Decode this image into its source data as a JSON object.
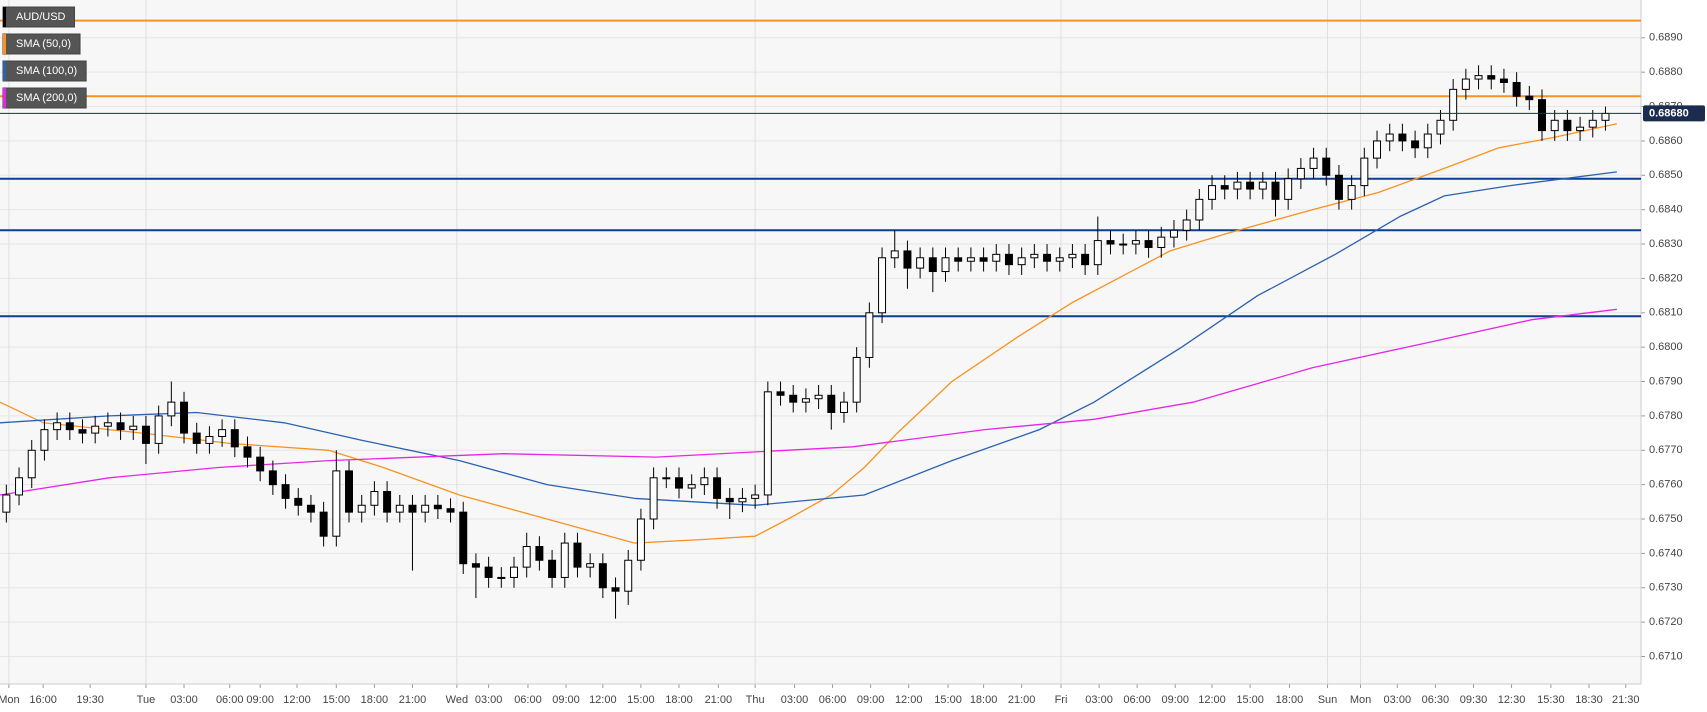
{
  "chart_data": {
    "type": "candlestick",
    "xlim": [
      0,
      129.3
    ],
    "ylim": [
      0.6702,
      0.6901
    ],
    "yticks": [
      {
        "value": 0.671,
        "label": "0.6710"
      },
      {
        "value": 0.672,
        "label": "0.6720"
      },
      {
        "value": 0.673,
        "label": "0.6730"
      },
      {
        "value": 0.674,
        "label": "0.6740"
      },
      {
        "value": 0.675,
        "label": "0.6750"
      },
      {
        "value": 0.676,
        "label": "0.6760"
      },
      {
        "value": 0.677,
        "label": "0.6770"
      },
      {
        "value": 0.678,
        "label": "0.6780"
      },
      {
        "value": 0.679,
        "label": "0.6790"
      },
      {
        "value": 0.68,
        "label": "0.6800"
      },
      {
        "value": 0.681,
        "label": "0.6810"
      },
      {
        "value": 0.682,
        "label": "0.6820"
      },
      {
        "value": 0.683,
        "label": "0.6830"
      },
      {
        "value": 0.684,
        "label": "0.6840"
      },
      {
        "value": 0.685,
        "label": "0.6850"
      },
      {
        "value": 0.686,
        "label": "0.6860"
      },
      {
        "value": 0.687,
        "label": "0.6870"
      },
      {
        "value": 0.688,
        "label": "0.6880"
      },
      {
        "value": 0.689,
        "label": "0.6890"
      }
    ],
    "xticks": [
      {
        "value": 0.7,
        "label": "Mon"
      },
      {
        "value": 3.4,
        "label": "16:00"
      },
      {
        "value": 7.1,
        "label": "19:30"
      },
      {
        "value": 11.5,
        "label": "Tue"
      },
      {
        "value": 14.5,
        "label": "03:00"
      },
      {
        "value": 18.1,
        "label": "06:00"
      },
      {
        "value": 20.5,
        "label": "09:00"
      },
      {
        "value": 23.4,
        "label": "12:00"
      },
      {
        "value": 26.5,
        "label": "15:00"
      },
      {
        "value": 29.5,
        "label": "18:00"
      },
      {
        "value": 32.5,
        "label": "21:00"
      },
      {
        "value": 36,
        "label": "Wed"
      },
      {
        "value": 38.5,
        "label": "03:00"
      },
      {
        "value": 41.6,
        "label": "06:00"
      },
      {
        "value": 44.6,
        "label": "09:00"
      },
      {
        "value": 47.5,
        "label": "12:00"
      },
      {
        "value": 50.5,
        "label": "15:00"
      },
      {
        "value": 53.5,
        "label": "18:00"
      },
      {
        "value": 56.6,
        "label": "21:00"
      },
      {
        "value": 59.5,
        "label": "Thu"
      },
      {
        "value": 62.6,
        "label": "03:00"
      },
      {
        "value": 65.6,
        "label": "06:00"
      },
      {
        "value": 68.6,
        "label": "09:00"
      },
      {
        "value": 71.6,
        "label": "12:00"
      },
      {
        "value": 74.7,
        "label": "15:00"
      },
      {
        "value": 77.5,
        "label": "18:00"
      },
      {
        "value": 80.5,
        "label": "21:00"
      },
      {
        "value": 83.6,
        "label": "Fri"
      },
      {
        "value": 86.6,
        "label": "03:00"
      },
      {
        "value": 89.6,
        "label": "06:00"
      },
      {
        "value": 92.6,
        "label": "09:00"
      },
      {
        "value": 95.5,
        "label": "12:00"
      },
      {
        "value": 98.5,
        "label": "15:00"
      },
      {
        "value": 101.6,
        "label": "18:00"
      },
      {
        "value": 104.6,
        "label": "Sun"
      },
      {
        "value": 107.2,
        "label": "Mon"
      },
      {
        "value": 110.1,
        "label": "03:00"
      },
      {
        "value": 113.1,
        "label": "06:30"
      },
      {
        "value": 116.1,
        "label": "09:30"
      },
      {
        "value": 119.1,
        "label": "12:30"
      },
      {
        "value": 122.2,
        "label": "15:30"
      },
      {
        "value": 125.2,
        "label": "18:30"
      },
      {
        "value": 128.1,
        "label": "21:30"
      }
    ],
    "grid": true,
    "levels": [
      {
        "value": 0.6895,
        "color": "#f7931e"
      },
      {
        "value": 0.6873,
        "color": "#f7931e"
      },
      {
        "value": 0.6849,
        "color": "#0d3f8f"
      },
      {
        "value": 0.6834,
        "color": "#0d3f8f"
      },
      {
        "value": 0.6809,
        "color": "#0d3f8f"
      }
    ],
    "last_price": {
      "value": 0.6868,
      "label": "0.68680"
    },
    "series": [
      {
        "name": "AUD/USD",
        "color": "#000000",
        "open": [
          0.6752,
          0.6757,
          0.6762,
          0.677,
          0.6776,
          0.6778,
          0.6776,
          0.6775,
          0.6777,
          0.6778,
          0.6776,
          0.6777,
          0.6772,
          0.678,
          0.6784,
          0.6775,
          0.6772,
          0.6774,
          0.6776,
          0.6771,
          0.6768,
          0.6764,
          0.676,
          0.6756,
          0.6754,
          0.6752,
          0.6745,
          0.6764,
          0.6752,
          0.6754,
          0.6758,
          0.6752,
          0.6754,
          0.6752,
          0.6754,
          0.6753,
          0.6752,
          0.6737,
          0.6736,
          0.6733,
          0.6733,
          0.6736,
          0.6742,
          0.6738,
          0.6733,
          0.6743,
          0.6736,
          0.6737,
          0.673,
          0.6729,
          0.6738,
          0.675,
          0.6762,
          0.6762,
          0.6759,
          0.676,
          0.6762,
          0.6756,
          0.6755,
          0.6756,
          0.6757,
          0.6787,
          0.6786,
          0.6784,
          0.6785,
          0.6786,
          0.6781,
          0.6784,
          0.6797,
          0.681,
          0.6826,
          0.6828,
          0.6823,
          0.6826,
          0.6822,
          0.6826,
          0.6825,
          0.6826,
          0.6825,
          0.6827,
          0.6824,
          0.6826,
          0.6827,
          0.6825,
          0.6826,
          0.6827,
          0.6824,
          0.6831,
          0.683,
          0.683,
          0.6831,
          0.6829,
          0.6832,
          0.6834,
          0.6837,
          0.6843,
          0.6847,
          0.6846,
          0.6848,
          0.6846,
          0.6848,
          0.6843,
          0.6849,
          0.6852,
          0.6855,
          0.685,
          0.6843,
          0.6847,
          0.6855,
          0.686,
          0.6862,
          0.686,
          0.6858,
          0.6862,
          0.6866,
          0.6875,
          0.6878,
          0.6879,
          0.6878,
          0.6877,
          0.6873,
          0.6872,
          0.6863,
          0.6866,
          0.6863,
          0.6864,
          0.6866
        ],
        "high": [
          0.676,
          0.6765,
          0.6773,
          0.6779,
          0.6781,
          0.6781,
          0.6779,
          0.678,
          0.6781,
          0.6781,
          0.678,
          0.678,
          0.6783,
          0.679,
          0.6787,
          0.6778,
          0.6777,
          0.6779,
          0.6779,
          0.6774,
          0.6771,
          0.6767,
          0.6763,
          0.6759,
          0.6757,
          0.6755,
          0.677,
          0.6767,
          0.6757,
          0.6761,
          0.6761,
          0.6757,
          0.6757,
          0.6757,
          0.6757,
          0.6756,
          0.6755,
          0.674,
          0.6739,
          0.6736,
          0.6739,
          0.6746,
          0.6745,
          0.6741,
          0.6746,
          0.6746,
          0.674,
          0.674,
          0.6733,
          0.6741,
          0.6753,
          0.6765,
          0.6765,
          0.6765,
          0.6763,
          0.6765,
          0.6765,
          0.6759,
          0.6759,
          0.676,
          0.679,
          0.679,
          0.6789,
          0.6788,
          0.6789,
          0.6789,
          0.6787,
          0.68,
          0.6813,
          0.6829,
          0.6834,
          0.6831,
          0.6829,
          0.6829,
          0.6829,
          0.6829,
          0.6829,
          0.6829,
          0.683,
          0.683,
          0.6829,
          0.683,
          0.683,
          0.6829,
          0.683,
          0.683,
          0.6838,
          0.6834,
          0.6833,
          0.6834,
          0.6834,
          0.6835,
          0.6837,
          0.684,
          0.6846,
          0.685,
          0.685,
          0.6851,
          0.6851,
          0.6851,
          0.6851,
          0.6852,
          0.6855,
          0.6858,
          0.6858,
          0.6853,
          0.685,
          0.6858,
          0.6863,
          0.6865,
          0.6865,
          0.6863,
          0.6865,
          0.6869,
          0.6878,
          0.6881,
          0.6882,
          0.6882,
          0.6881,
          0.688,
          0.6876,
          0.6875,
          0.6869,
          0.6869,
          0.6867,
          0.6869,
          0.687
        ],
        "low": [
          0.6749,
          0.6754,
          0.6759,
          0.6767,
          0.6773,
          0.6773,
          0.6772,
          0.6772,
          0.6774,
          0.6773,
          0.6773,
          0.6766,
          0.6769,
          0.6777,
          0.6772,
          0.6769,
          0.6769,
          0.6771,
          0.6768,
          0.6765,
          0.6761,
          0.6757,
          0.6753,
          0.6751,
          0.6749,
          0.6742,
          0.6742,
          0.6749,
          0.6749,
          0.6751,
          0.6749,
          0.6749,
          0.6735,
          0.6749,
          0.675,
          0.6749,
          0.6734,
          0.6727,
          0.673,
          0.673,
          0.673,
          0.6733,
          0.6735,
          0.673,
          0.673,
          0.6733,
          0.6733,
          0.6727,
          0.6721,
          0.6725,
          0.6735,
          0.6747,
          0.6759,
          0.6756,
          0.6756,
          0.6757,
          0.6753,
          0.675,
          0.6752,
          0.6753,
          0.6754,
          0.6783,
          0.6781,
          0.6781,
          0.6782,
          0.6776,
          0.6778,
          0.6781,
          0.6794,
          0.6807,
          0.6823,
          0.6817,
          0.682,
          0.6816,
          0.6819,
          0.6822,
          0.6822,
          0.6822,
          0.6822,
          0.6821,
          0.6821,
          0.6823,
          0.6822,
          0.6822,
          0.6823,
          0.6821,
          0.6821,
          0.6827,
          0.6827,
          0.6827,
          0.6826,
          0.6826,
          0.6829,
          0.6831,
          0.6834,
          0.684,
          0.6843,
          0.6843,
          0.6843,
          0.6843,
          0.6838,
          0.684,
          0.6846,
          0.6849,
          0.6847,
          0.684,
          0.684,
          0.6844,
          0.6852,
          0.6857,
          0.6857,
          0.6855,
          0.6855,
          0.6859,
          0.6863,
          0.6872,
          0.6875,
          0.6875,
          0.6874,
          0.687,
          0.6869,
          0.686,
          0.686,
          0.686,
          0.686,
          0.6861,
          0.6863
        ],
        "close": [
          0.6757,
          0.6762,
          0.677,
          0.6776,
          0.6778,
          0.6776,
          0.6775,
          0.6777,
          0.6778,
          0.6776,
          0.6777,
          0.6772,
          0.678,
          0.6784,
          0.6775,
          0.6772,
          0.6774,
          0.6776,
          0.6771,
          0.6768,
          0.6764,
          0.676,
          0.6756,
          0.6754,
          0.6752,
          0.6745,
          0.6764,
          0.6752,
          0.6754,
          0.6758,
          0.6752,
          0.6754,
          0.6752,
          0.6754,
          0.6753,
          0.6752,
          0.6737,
          0.6736,
          0.6733,
          0.6733,
          0.6736,
          0.6742,
          0.6738,
          0.6733,
          0.6743,
          0.6736,
          0.6737,
          0.673,
          0.6729,
          0.6738,
          0.675,
          0.6762,
          0.6762,
          0.6759,
          0.676,
          0.6762,
          0.6756,
          0.6755,
          0.6756,
          0.6757,
          0.6787,
          0.6786,
          0.6784,
          0.6785,
          0.6786,
          0.6781,
          0.6784,
          0.6797,
          0.681,
          0.6826,
          0.6828,
          0.6823,
          0.6826,
          0.6822,
          0.6826,
          0.6825,
          0.6826,
          0.6825,
          0.6827,
          0.6824,
          0.6826,
          0.6827,
          0.6825,
          0.6826,
          0.6827,
          0.6824,
          0.6831,
          0.683,
          0.683,
          0.6831,
          0.6829,
          0.6832,
          0.6834,
          0.6837,
          0.6843,
          0.6847,
          0.6846,
          0.6848,
          0.6846,
          0.6848,
          0.6843,
          0.6849,
          0.6852,
          0.6855,
          0.685,
          0.6843,
          0.6847,
          0.6855,
          0.686,
          0.6862,
          0.686,
          0.6858,
          0.6862,
          0.6866,
          0.6875,
          0.6878,
          0.6879,
          0.6878,
          0.6877,
          0.6873,
          0.6872,
          0.6863,
          0.6866,
          0.6863,
          0.6864,
          0.6866,
          0.6868
        ]
      },
      {
        "name": "SMA (50,0)",
        "color": "#f7931e",
        "x": [
          0,
          3.4,
          11.2,
          18.1,
          25.9,
          30.2,
          36.2,
          43.1,
          50,
          55.2,
          59.5,
          62.1,
          65.5,
          68.1,
          70.7,
          75,
          80.2,
          84.5,
          92.2,
          96.6,
          103.4,
          108.6,
          113.8,
          118.1,
          122.4,
          127.4
        ],
        "values": [
          0.6784,
          0.6778,
          0.6775,
          0.6772,
          0.677,
          0.6765,
          0.6757,
          0.675,
          0.6743,
          0.6744,
          0.6745,
          0.675,
          0.6757,
          0.6765,
          0.6775,
          0.679,
          0.6803,
          0.6813,
          0.6828,
          0.6833,
          0.684,
          0.6845,
          0.6852,
          0.6858,
          0.6861,
          0.6865
        ]
      },
      {
        "name": "SMA (100,0)",
        "color": "#2a62b0",
        "x": [
          0,
          8.6,
          15.5,
          22.4,
          28.4,
          36.2,
          43.1,
          50,
          59.5,
          68.1,
          75,
          81.9,
          86.2,
          93.1,
          99.1,
          105.2,
          110.3,
          113.8,
          119,
          127.4
        ],
        "values": [
          0.6778,
          0.678,
          0.6781,
          0.6778,
          0.6773,
          0.6767,
          0.676,
          0.6756,
          0.6754,
          0.6757,
          0.6767,
          0.6776,
          0.6784,
          0.68,
          0.6815,
          0.6827,
          0.6838,
          0.6844,
          0.6847,
          0.6851
        ]
      },
      {
        "name": "SMA (200,0)",
        "color": "#e626e6",
        "x": [
          0,
          8.6,
          17.2,
          25.9,
          39.7,
          51.7,
          67.2,
          77.6,
          86.2,
          94,
          103.4,
          112.1,
          120.7,
          127.4
        ],
        "values": [
          0.6757,
          0.6762,
          0.6765,
          0.6767,
          0.6769,
          0.6768,
          0.6771,
          0.6776,
          0.6779,
          0.6784,
          0.6794,
          0.6801,
          0.6808,
          0.6811
        ]
      }
    ]
  }
}
